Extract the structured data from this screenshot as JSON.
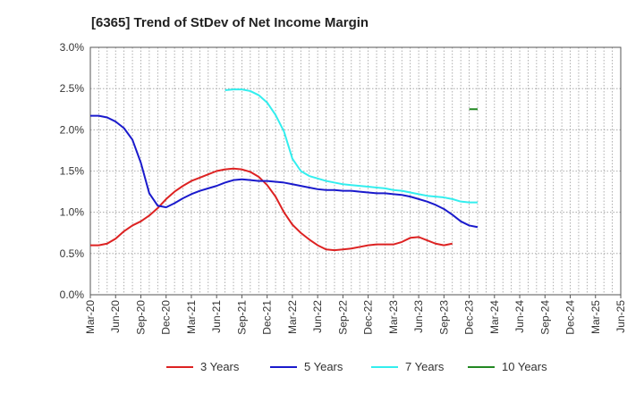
{
  "chart_data": {
    "type": "line",
    "title": "[6365]  Trend of StDev of Net Income Margin",
    "xlabel": "",
    "ylabel": "",
    "x_ticks": [
      "Mar-20",
      "Jun-20",
      "Sep-20",
      "Dec-20",
      "Mar-21",
      "Jun-21",
      "Sep-21",
      "Dec-21",
      "Mar-22",
      "Jun-22",
      "Sep-22",
      "Dec-22",
      "Mar-23",
      "Jun-23",
      "Sep-23",
      "Dec-23",
      "Mar-24",
      "Jun-24",
      "Sep-24",
      "Dec-24",
      "Mar-25",
      "Jun-25"
    ],
    "y_ticks": [
      "0.0%",
      "0.5%",
      "1.0%",
      "1.5%",
      "2.0%",
      "2.5%",
      "3.0%"
    ],
    "ylim": [
      0,
      3.0
    ],
    "grid": true,
    "legend_position": "bottom",
    "series": [
      {
        "name": "3 Years",
        "color": "#dd2222",
        "values": [
          [
            0,
            0.6
          ],
          [
            1,
            0.6
          ],
          [
            2,
            0.62
          ],
          [
            3,
            0.68
          ],
          [
            4,
            0.77
          ],
          [
            5,
            0.84
          ],
          [
            6,
            0.89
          ],
          [
            7,
            0.96
          ],
          [
            8,
            1.05
          ],
          [
            9,
            1.16
          ],
          [
            10,
            1.25
          ],
          [
            11,
            1.32
          ],
          [
            12,
            1.38
          ],
          [
            13,
            1.42
          ],
          [
            14,
            1.46
          ],
          [
            15,
            1.5
          ],
          [
            16,
            1.52
          ],
          [
            17,
            1.53
          ],
          [
            18,
            1.52
          ],
          [
            19,
            1.49
          ],
          [
            20,
            1.43
          ],
          [
            21,
            1.33
          ],
          [
            22,
            1.19
          ],
          [
            23,
            1.0
          ],
          [
            24,
            0.85
          ],
          [
            25,
            0.75
          ],
          [
            26,
            0.67
          ],
          [
            27,
            0.6
          ],
          [
            28,
            0.55
          ],
          [
            29,
            0.54
          ],
          [
            30,
            0.55
          ],
          [
            31,
            0.56
          ],
          [
            32,
            0.58
          ],
          [
            33,
            0.6
          ],
          [
            34,
            0.61
          ],
          [
            35,
            0.61
          ],
          [
            36,
            0.61
          ],
          [
            37,
            0.64
          ],
          [
            38,
            0.69
          ],
          [
            39,
            0.7
          ],
          [
            40,
            0.66
          ],
          [
            41,
            0.62
          ],
          [
            42,
            0.6
          ],
          [
            43,
            0.62
          ]
        ]
      },
      {
        "name": "5 Years",
        "color": "#1a1acc",
        "values": [
          [
            0,
            2.17
          ],
          [
            1,
            2.17
          ],
          [
            2,
            2.15
          ],
          [
            3,
            2.1
          ],
          [
            4,
            2.02
          ],
          [
            5,
            1.88
          ],
          [
            6,
            1.6
          ],
          [
            7,
            1.23
          ],
          [
            8,
            1.08
          ],
          [
            9,
            1.06
          ],
          [
            10,
            1.11
          ],
          [
            11,
            1.17
          ],
          [
            12,
            1.22
          ],
          [
            13,
            1.26
          ],
          [
            14,
            1.29
          ],
          [
            15,
            1.32
          ],
          [
            16,
            1.36
          ],
          [
            17,
            1.39
          ],
          [
            18,
            1.4
          ],
          [
            19,
            1.39
          ],
          [
            20,
            1.38
          ],
          [
            21,
            1.38
          ],
          [
            22,
            1.37
          ],
          [
            23,
            1.36
          ],
          [
            24,
            1.34
          ],
          [
            25,
            1.32
          ],
          [
            26,
            1.3
          ],
          [
            27,
            1.28
          ],
          [
            28,
            1.27
          ],
          [
            29,
            1.27
          ],
          [
            30,
            1.26
          ],
          [
            31,
            1.26
          ],
          [
            32,
            1.25
          ],
          [
            33,
            1.24
          ],
          [
            34,
            1.23
          ],
          [
            35,
            1.23
          ],
          [
            36,
            1.22
          ],
          [
            37,
            1.21
          ],
          [
            38,
            1.19
          ],
          [
            39,
            1.16
          ],
          [
            40,
            1.13
          ],
          [
            41,
            1.09
          ],
          [
            42,
            1.04
          ],
          [
            43,
            0.97
          ],
          [
            44,
            0.89
          ],
          [
            45,
            0.84
          ],
          [
            46,
            0.82
          ]
        ]
      },
      {
        "name": "7 Years",
        "color": "#33eeee",
        "values": [
          [
            16,
            2.48
          ],
          [
            17,
            2.49
          ],
          [
            18,
            2.49
          ],
          [
            19,
            2.47
          ],
          [
            20,
            2.42
          ],
          [
            21,
            2.33
          ],
          [
            22,
            2.18
          ],
          [
            23,
            1.98
          ],
          [
            24,
            1.65
          ],
          [
            25,
            1.5
          ],
          [
            26,
            1.44
          ],
          [
            27,
            1.41
          ],
          [
            28,
            1.38
          ],
          [
            29,
            1.36
          ],
          [
            30,
            1.34
          ],
          [
            31,
            1.33
          ],
          [
            32,
            1.32
          ],
          [
            33,
            1.31
          ],
          [
            34,
            1.3
          ],
          [
            35,
            1.29
          ],
          [
            36,
            1.27
          ],
          [
            37,
            1.26
          ],
          [
            38,
            1.24
          ],
          [
            39,
            1.22
          ],
          [
            40,
            1.2
          ],
          [
            41,
            1.19
          ],
          [
            42,
            1.18
          ],
          [
            43,
            1.16
          ],
          [
            44,
            1.13
          ],
          [
            45,
            1.12
          ],
          [
            46,
            1.12
          ]
        ]
      },
      {
        "name": "10 Years",
        "color": "#228822",
        "values": [
          [
            45,
            2.25
          ],
          [
            46,
            2.25
          ]
        ]
      }
    ]
  }
}
